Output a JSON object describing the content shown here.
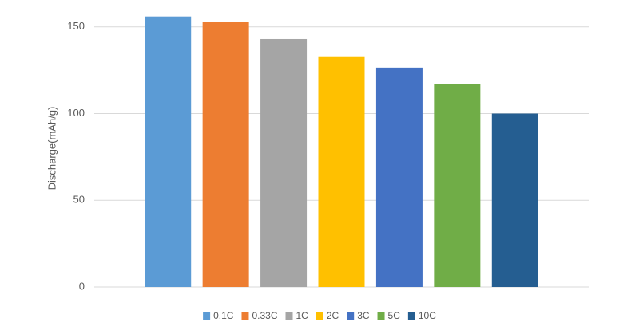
{
  "chart_data": {
    "type": "bar",
    "y_label": "Discharge(mAh/g)",
    "series": [
      {
        "name": "0.1C",
        "color": "#5b9bd5",
        "values": [
          156
        ]
      },
      {
        "name": "0.33C",
        "color": "#ed7d31",
        "values": [
          153
        ]
      },
      {
        "name": "1C",
        "color": "#a5a5a5",
        "values": [
          143
        ]
      },
      {
        "name": "2C",
        "color": "#ffc000",
        "values": [
          133
        ]
      },
      {
        "name": "3C",
        "color": "#4472c4",
        "values": [
          126.5
        ]
      },
      {
        "name": "5C",
        "color": "#70ad47",
        "values": [
          117
        ]
      },
      {
        "name": "10C",
        "color": "#255e91",
        "values": [
          100
        ]
      }
    ],
    "ylim": [
      0,
      160
    ],
    "yticks": [
      0,
      50,
      100,
      150
    ],
    "grid": true,
    "legend": "bottom"
  }
}
